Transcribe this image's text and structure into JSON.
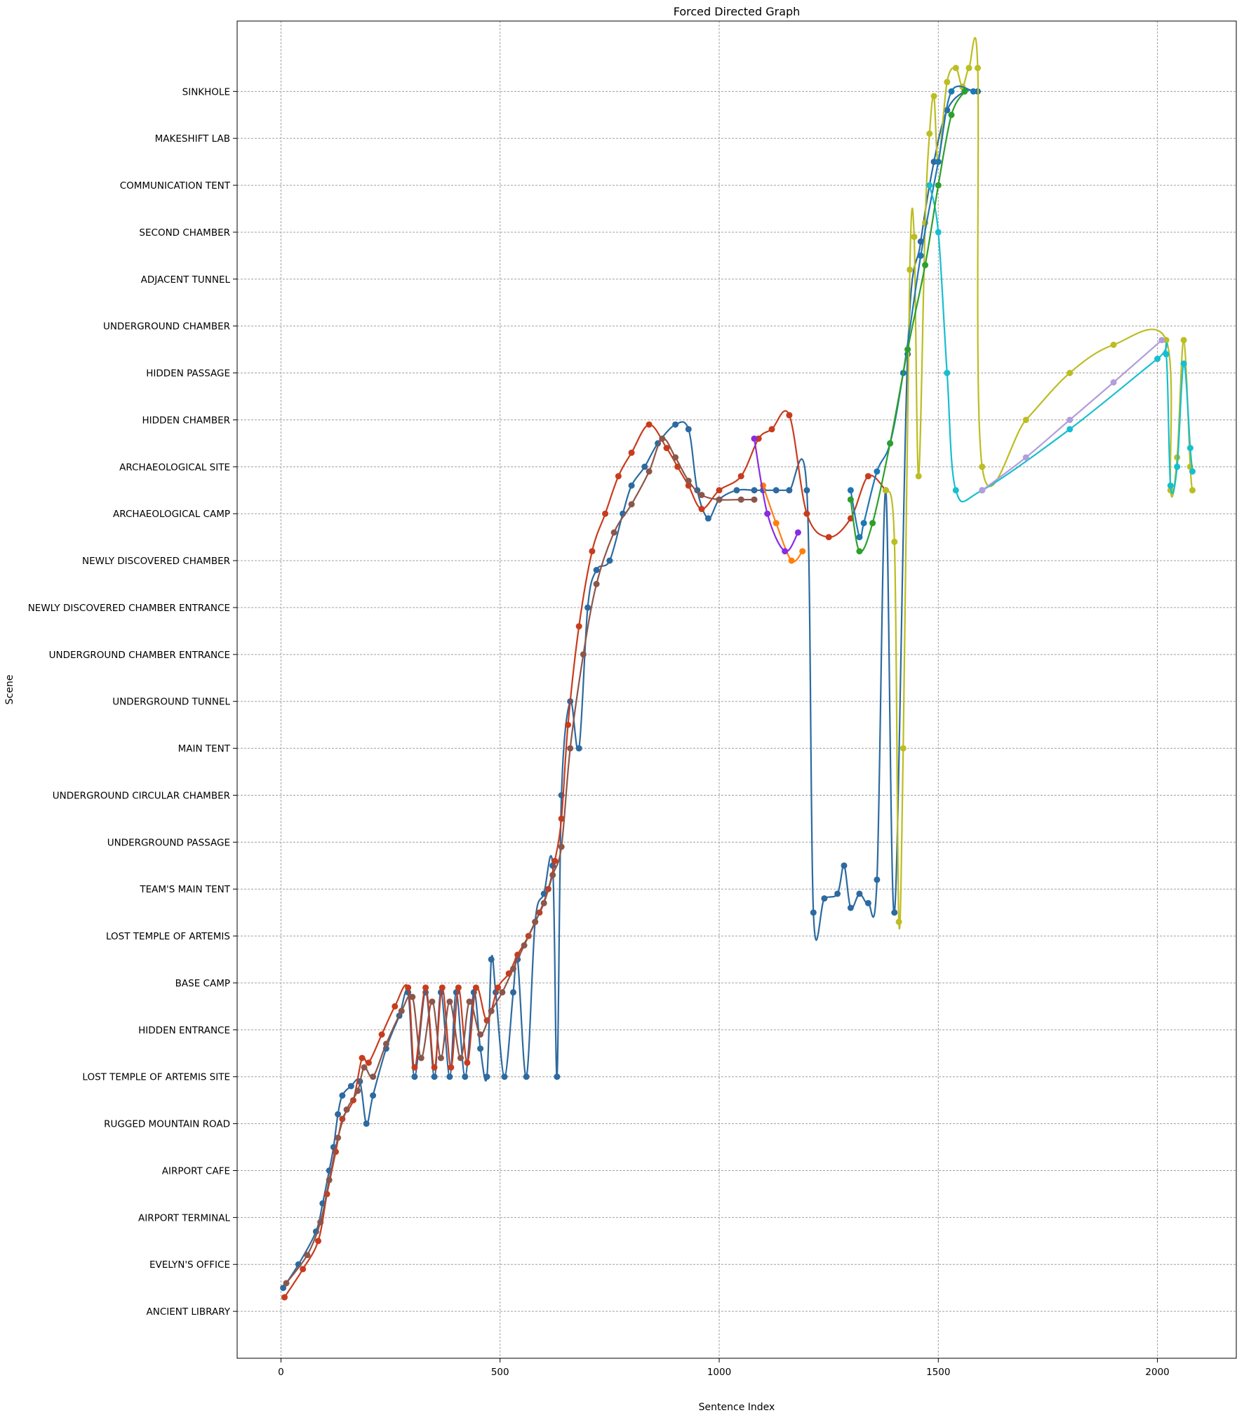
{
  "chart_data": {
    "type": "line",
    "title": "Forced Directed Graph",
    "xlabel": "Sentence Index",
    "ylabel": "Scene",
    "xlim": [
      -100,
      2180
    ],
    "ylim": [
      -1,
      27.5
    ],
    "x_ticks": [
      0,
      500,
      1000,
      1500,
      2000
    ],
    "y_categories": [
      "ANCIENT LIBRARY",
      "EVELYN'S OFFICE",
      "AIRPORT TERMINAL",
      "AIRPORT CAFE",
      "RUGGED MOUNTAIN ROAD",
      "LOST TEMPLE OF ARTEMIS SITE",
      "HIDDEN ENTRANCE",
      "BASE CAMP",
      "LOST TEMPLE OF ARTEMIS",
      "TEAM'S MAIN TENT",
      "UNDERGROUND PASSAGE",
      "UNDERGROUND CIRCULAR CHAMBER",
      "MAIN TENT",
      "UNDERGROUND TUNNEL",
      "UNDERGROUND CHAMBER ENTRANCE",
      "NEWLY DISCOVERED CHAMBER ENTRANCE",
      "NEWLY DISCOVERED CHAMBER",
      "ARCHAEOLOGICAL CAMP",
      "ARCHAEOLOGICAL SITE",
      "HIDDEN CHAMBER",
      "HIDDEN PASSAGE",
      "UNDERGROUND CHAMBER",
      "ADJACENT TUNNEL",
      "SECOND CHAMBER",
      "COMMUNICATION TENT",
      "MAKESHIFT LAB",
      "SINKHOLE"
    ],
    "grid": true,
    "series": [
      {
        "color": "#2c6aa0",
        "points": [
          [
            5,
            0.5
          ],
          [
            40,
            1
          ],
          [
            80,
            1.7
          ],
          [
            95,
            2.3
          ],
          [
            110,
            3
          ],
          [
            120,
            3.5
          ],
          [
            130,
            4.2
          ],
          [
            140,
            4.6
          ],
          [
            160,
            4.8
          ],
          [
            180,
            4.9
          ],
          [
            195,
            4.0
          ],
          [
            210,
            4.6
          ],
          [
            240,
            5.6
          ],
          [
            270,
            6.3
          ],
          [
            290,
            6.8
          ],
          [
            305,
            5.0
          ],
          [
            330,
            6.8
          ],
          [
            350,
            5.0
          ],
          [
            365,
            6.8
          ],
          [
            385,
            5.0
          ],
          [
            400,
            6.8
          ],
          [
            420,
            5.0
          ],
          [
            440,
            6.8
          ],
          [
            455,
            5.6
          ],
          [
            470,
            5.0
          ],
          [
            480,
            7.5
          ],
          [
            490,
            6.8
          ],
          [
            510,
            5.0
          ],
          [
            530,
            6.8
          ],
          [
            540,
            7.5
          ],
          [
            560,
            5.0
          ],
          [
            580,
            8.3
          ],
          [
            600,
            8.9
          ],
          [
            620,
            9.5
          ],
          [
            630,
            5.0
          ],
          [
            640,
            11.0
          ],
          [
            660,
            13.0
          ],
          [
            680,
            12.0
          ],
          [
            700,
            15.0
          ],
          [
            720,
            15.8
          ],
          [
            750,
            16.0
          ],
          [
            780,
            17.0
          ],
          [
            800,
            17.6
          ],
          [
            830,
            18.0
          ],
          [
            860,
            18.5
          ],
          [
            900,
            18.9
          ],
          [
            930,
            18.8
          ],
          [
            950,
            17.5
          ],
          [
            975,
            16.9
          ],
          [
            1000,
            17.3
          ],
          [
            1040,
            17.5
          ],
          [
            1080,
            17.5
          ],
          [
            1100,
            17.5
          ],
          [
            1130,
            17.5
          ],
          [
            1160,
            17.5
          ],
          [
            1200,
            17.5
          ],
          [
            1215,
            8.5
          ],
          [
            1240,
            8.8
          ],
          [
            1270,
            8.9
          ],
          [
            1285,
            9.5
          ],
          [
            1300,
            8.6
          ],
          [
            1320,
            8.9
          ],
          [
            1340,
            8.7
          ],
          [
            1360,
            9.2
          ],
          [
            1380,
            17.5
          ],
          [
            1400,
            8.5
          ],
          [
            1430,
            20.4
          ],
          [
            1460,
            22.8
          ],
          [
            1490,
            24.5
          ],
          [
            1520,
            25.6
          ],
          [
            1560,
            26.0
          ],
          [
            1590,
            26.0
          ]
        ]
      },
      {
        "color": "#c83c1e",
        "points": [
          [
            8,
            0.3
          ],
          [
            50,
            0.9
          ],
          [
            85,
            1.5
          ],
          [
            105,
            2.5
          ],
          [
            125,
            3.4
          ],
          [
            140,
            4.1
          ],
          [
            165,
            4.5
          ],
          [
            185,
            5.4
          ],
          [
            200,
            5.3
          ],
          [
            230,
            5.9
          ],
          [
            260,
            6.5
          ],
          [
            290,
            6.9
          ],
          [
            305,
            5.2
          ],
          [
            330,
            6.9
          ],
          [
            350,
            5.2
          ],
          [
            368,
            6.9
          ],
          [
            388,
            5.2
          ],
          [
            405,
            6.9
          ],
          [
            425,
            5.3
          ],
          [
            445,
            6.9
          ],
          [
            470,
            6.2
          ],
          [
            495,
            6.9
          ],
          [
            520,
            7.2
          ],
          [
            540,
            7.6
          ],
          [
            565,
            8.0
          ],
          [
            590,
            8.5
          ],
          [
            610,
            9.0
          ],
          [
            625,
            9.6
          ],
          [
            640,
            10.5
          ],
          [
            655,
            12.5
          ],
          [
            680,
            14.6
          ],
          [
            710,
            16.2
          ],
          [
            740,
            17.0
          ],
          [
            770,
            17.8
          ],
          [
            800,
            18.3
          ],
          [
            840,
            18.9
          ],
          [
            880,
            18.4
          ],
          [
            905,
            18.0
          ],
          [
            930,
            17.6
          ],
          [
            960,
            17.1
          ],
          [
            1000,
            17.5
          ],
          [
            1050,
            17.8
          ],
          [
            1090,
            18.6
          ],
          [
            1120,
            18.8
          ],
          [
            1160,
            19.1
          ],
          [
            1200,
            17.0
          ],
          [
            1250,
            16.5
          ],
          [
            1300,
            16.9
          ],
          [
            1340,
            17.8
          ],
          [
            1380,
            17.5
          ]
        ]
      },
      {
        "color": "#8c564b",
        "points": [
          [
            12,
            0.6
          ],
          [
            60,
            1.2
          ],
          [
            90,
            1.9
          ],
          [
            110,
            2.8
          ],
          [
            130,
            3.7
          ],
          [
            150,
            4.3
          ],
          [
            175,
            4.7
          ],
          [
            190,
            5.2
          ],
          [
            210,
            5.0
          ],
          [
            240,
            5.7
          ],
          [
            275,
            6.4
          ],
          [
            300,
            6.7
          ],
          [
            320,
            5.4
          ],
          [
            345,
            6.6
          ],
          [
            365,
            5.4
          ],
          [
            385,
            6.6
          ],
          [
            410,
            5.4
          ],
          [
            430,
            6.6
          ],
          [
            455,
            5.9
          ],
          [
            480,
            6.4
          ],
          [
            505,
            6.8
          ],
          [
            530,
            7.3
          ],
          [
            555,
            7.8
          ],
          [
            580,
            8.3
          ],
          [
            600,
            8.7
          ],
          [
            620,
            9.3
          ],
          [
            640,
            9.9
          ],
          [
            660,
            12.0
          ],
          [
            690,
            14.0
          ],
          [
            720,
            15.5
          ],
          [
            760,
            16.6
          ],
          [
            800,
            17.2
          ],
          [
            840,
            17.9
          ],
          [
            870,
            18.6
          ],
          [
            900,
            18.2
          ],
          [
            930,
            17.7
          ],
          [
            960,
            17.4
          ],
          [
            1000,
            17.3
          ],
          [
            1050,
            17.3
          ],
          [
            1080,
            17.3
          ]
        ]
      },
      {
        "color": "#bcbd22",
        "points": [
          [
            1380,
            17.5
          ],
          [
            1400,
            16.4
          ],
          [
            1410,
            8.3
          ],
          [
            1420,
            12.0
          ],
          [
            1435,
            22.2
          ],
          [
            1445,
            22.9
          ],
          [
            1455,
            17.8
          ],
          [
            1470,
            23.2
          ],
          [
            1480,
            25.1
          ],
          [
            1490,
            25.9
          ],
          [
            1500,
            24.5
          ],
          [
            1520,
            26.2
          ],
          [
            1540,
            26.5
          ],
          [
            1555,
            26.1
          ],
          [
            1570,
            26.5
          ],
          [
            1590,
            26.5
          ],
          [
            1600,
            18.0
          ],
          [
            1700,
            19.0
          ],
          [
            1800,
            20.0
          ],
          [
            1900,
            20.6
          ],
          [
            2020,
            20.7
          ],
          [
            2030,
            17.5
          ],
          [
            2045,
            18.2
          ],
          [
            2060,
            20.7
          ],
          [
            2075,
            18.0
          ],
          [
            2080,
            17.5
          ]
        ]
      },
      {
        "color": "#1f77b4",
        "points": [
          [
            1300,
            17.5
          ],
          [
            1320,
            16.5
          ],
          [
            1330,
            16.8
          ],
          [
            1360,
            17.9
          ],
          [
            1390,
            18.5
          ],
          [
            1420,
            20.0
          ],
          [
            1460,
            22.5
          ],
          [
            1500,
            24.5
          ],
          [
            1530,
            26.0
          ],
          [
            1580,
            26.0
          ]
        ]
      },
      {
        "color": "#17becf",
        "points": [
          [
            1480,
            24.0
          ],
          [
            1500,
            23.0
          ],
          [
            1520,
            20.0
          ],
          [
            1540,
            17.5
          ],
          [
            1600,
            17.5
          ],
          [
            1800,
            18.8
          ],
          [
            2000,
            20.3
          ],
          [
            2020,
            20.4
          ],
          [
            2030,
            17.6
          ],
          [
            2045,
            18.0
          ],
          [
            2060,
            20.2
          ],
          [
            2075,
            18.4
          ],
          [
            2080,
            17.9
          ]
        ]
      },
      {
        "color": "#b39ddb",
        "points": [
          [
            1600,
            17.5
          ],
          [
            1700,
            18.2
          ],
          [
            1800,
            19.0
          ],
          [
            1900,
            19.8
          ],
          [
            2010,
            20.7
          ]
        ]
      },
      {
        "color": "#ff7f0e",
        "points": [
          [
            1100,
            17.6
          ],
          [
            1130,
            16.8
          ],
          [
            1165,
            16.0
          ],
          [
            1190,
            16.2
          ]
        ]
      },
      {
        "color": "#8a2be2",
        "points": [
          [
            1080,
            18.6
          ],
          [
            1110,
            17.0
          ],
          [
            1150,
            16.2
          ],
          [
            1180,
            16.6
          ]
        ]
      },
      {
        "color": "#2ca02c",
        "points": [
          [
            1300,
            17.3
          ],
          [
            1320,
            16.2
          ],
          [
            1350,
            16.8
          ],
          [
            1390,
            18.5
          ],
          [
            1430,
            20.5
          ],
          [
            1470,
            22.3
          ],
          [
            1500,
            24.0
          ],
          [
            1530,
            25.5
          ],
          [
            1560,
            26.0
          ]
        ]
      }
    ]
  }
}
